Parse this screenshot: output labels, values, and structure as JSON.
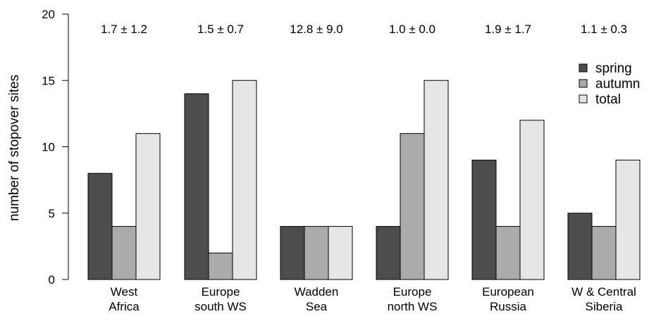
{
  "chart_data": {
    "type": "bar",
    "categories": [
      [
        "West",
        "Africa"
      ],
      [
        "Europe",
        "south WS"
      ],
      [
        "Wadden",
        "Sea"
      ],
      [
        "Europe",
        "north WS"
      ],
      [
        "European",
        "Russia"
      ],
      [
        "W & Central",
        "Siberia"
      ]
    ],
    "series": [
      {
        "name": "spring",
        "color": "#4d4d4d",
        "values": [
          8,
          14,
          4,
          4,
          9,
          5
        ]
      },
      {
        "name": "autumn",
        "color": "#ababab",
        "values": [
          4,
          2,
          4,
          11,
          4,
          4
        ]
      },
      {
        "name": "total",
        "color": "#e6e6e6",
        "values": [
          11,
          15,
          4,
          15,
          12,
          9
        ]
      }
    ],
    "annotations": [
      "1.7 ± 1.2",
      "1.5 ± 0.7",
      "12.8 ± 9.0",
      "1.0 ± 0.0",
      "1.9 ± 1.7",
      "1.1 ± 0.3"
    ],
    "ylabel": "number of stopover sites",
    "xlabel": "",
    "title": "",
    "ylim": [
      0,
      20
    ],
    "yticks": [
      0,
      5,
      10,
      15,
      20
    ],
    "legend_position": "top-right",
    "grid": false
  }
}
